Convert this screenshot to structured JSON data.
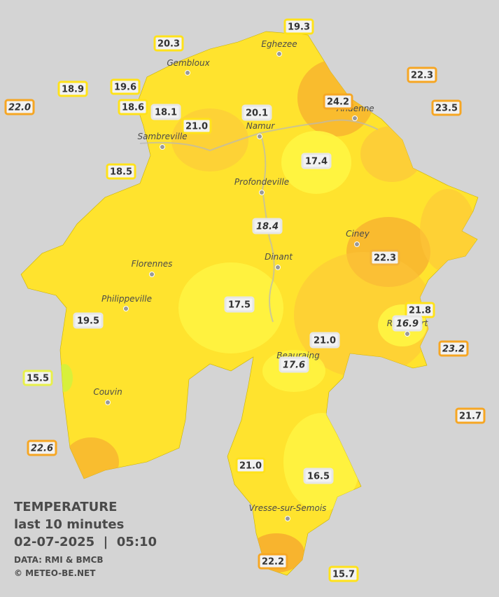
{
  "header": {
    "title": "TEMPERATURE",
    "subtitle": "last 10 minutes",
    "datetime": "02-07-2025  |  05:10",
    "source": "DATA: RMI & BMCB",
    "credit": "© METEO-BE.NET"
  },
  "cities": [
    "Eghezee",
    "Gembloux",
    "Andenne",
    "Namur",
    "Sambreville",
    "Profondeville",
    "Ciney",
    "Dinant",
    "Florennes",
    "Philippeville",
    "Rochefort",
    "Beauraing",
    "Couvin",
    "Vresse-sur-Semois"
  ],
  "stations": [
    {
      "label": "19.3",
      "border": "#ffe21a"
    },
    {
      "label": "20.3",
      "border": "#ffe21a"
    },
    {
      "label": "22.3",
      "border": "#f6a623"
    },
    {
      "label": "18.9",
      "border": "#ffe21a"
    },
    {
      "label": "19.6",
      "border": "#ffe21a"
    },
    {
      "label": "24.2",
      "border": "#f6a623"
    },
    {
      "label": "22.0",
      "border": "#f6a623",
      "italic": true
    },
    {
      "label": "18.6",
      "border": "#ffe21a"
    },
    {
      "label": "18.1",
      "border": "#e6e6e6"
    },
    {
      "label": "20.1",
      "border": "#e6e6e6"
    },
    {
      "label": "21.0",
      "border": "#ffe21a"
    },
    {
      "label": "23.5",
      "border": "#f6a623"
    },
    {
      "label": "18.5",
      "border": "#ffe21a"
    },
    {
      "label": "17.4",
      "border": "#e6e6e6"
    },
    {
      "label": "18.4",
      "border": "#e6e6e6",
      "italic": true
    },
    {
      "label": "22.3",
      "border": "#f2b33a"
    },
    {
      "label": "17.5",
      "border": "#e6e6e6"
    },
    {
      "label": "21.8",
      "border": "#ffe21a"
    },
    {
      "label": "16.9",
      "border": "#e6e6e6",
      "italic": true
    },
    {
      "label": "19.5",
      "border": "#e6e6e6"
    },
    {
      "label": "21.0",
      "border": "#e6e6e6"
    },
    {
      "label": "23.2",
      "border": "#f6a623",
      "italic": true
    },
    {
      "label": "17.6",
      "border": "#e6e6e6",
      "italic": true
    },
    {
      "label": "15.5",
      "border": "#e8f04a"
    },
    {
      "label": "21.7",
      "border": "#f6a623"
    },
    {
      "label": "22.6",
      "border": "#f6a623",
      "italic": true
    },
    {
      "label": "21.0",
      "border": "#ffe21a"
    },
    {
      "label": "16.5",
      "border": "#e6e6e6"
    },
    {
      "label": "22.2",
      "border": "#f6a623"
    },
    {
      "label": "15.7",
      "border": "#ffe21a"
    }
  ]
}
